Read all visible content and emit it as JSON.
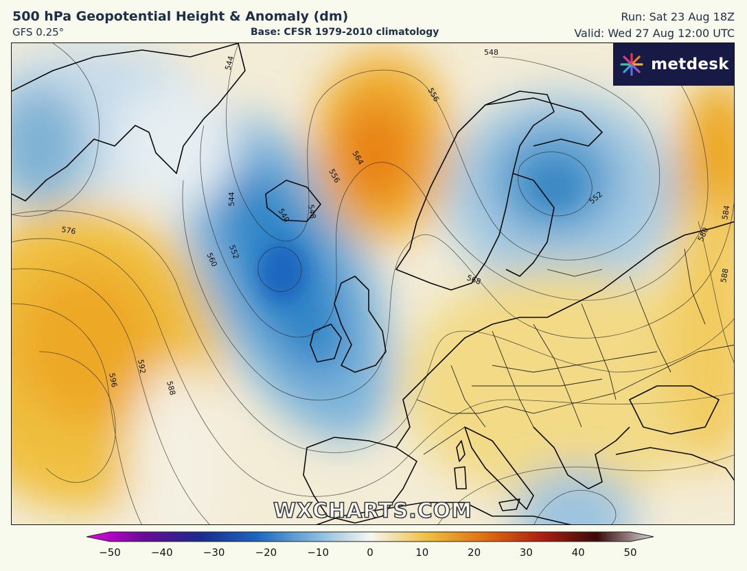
{
  "header": {
    "title": "500 hPa Geopotential Height & Anomaly (dm)",
    "model": "GFS 0.25°",
    "base": "Base: CFSR 1979-2010 climatology",
    "run": "Run: Sat 23 Aug 18Z",
    "valid": "Valid: Wed 27 Aug 12:00 UTC"
  },
  "logo": {
    "text": "metdesk",
    "icon": "starburst-icon"
  },
  "watermark": "WXCHARTS.COM",
  "contour_labels": [
    "544",
    "548",
    "556",
    "564",
    "556",
    "548",
    "540",
    "544",
    "552",
    "560",
    "576",
    "592",
    "596",
    "588",
    "568",
    "552",
    "580",
    "584",
    "588"
  ],
  "colorbar": {
    "min": -50,
    "max": 50,
    "ticks": [
      "−50",
      "−40",
      "−30",
      "−20",
      "−10",
      "0",
      "10",
      "20",
      "30",
      "40",
      "50"
    ],
    "colors": {
      "neg50": "#e400e4",
      "neg40": "#6a0a9a",
      "neg30": "#1a2a8c",
      "neg20": "#1a66c0",
      "neg10": "#7eb6dc",
      "zero": "#f6f6f2",
      "pos10": "#f0c040",
      "pos20": "#e07010",
      "pos30": "#b02010",
      "pos40": "#3a0a0a",
      "pos50": "#d8d8d8"
    }
  }
}
